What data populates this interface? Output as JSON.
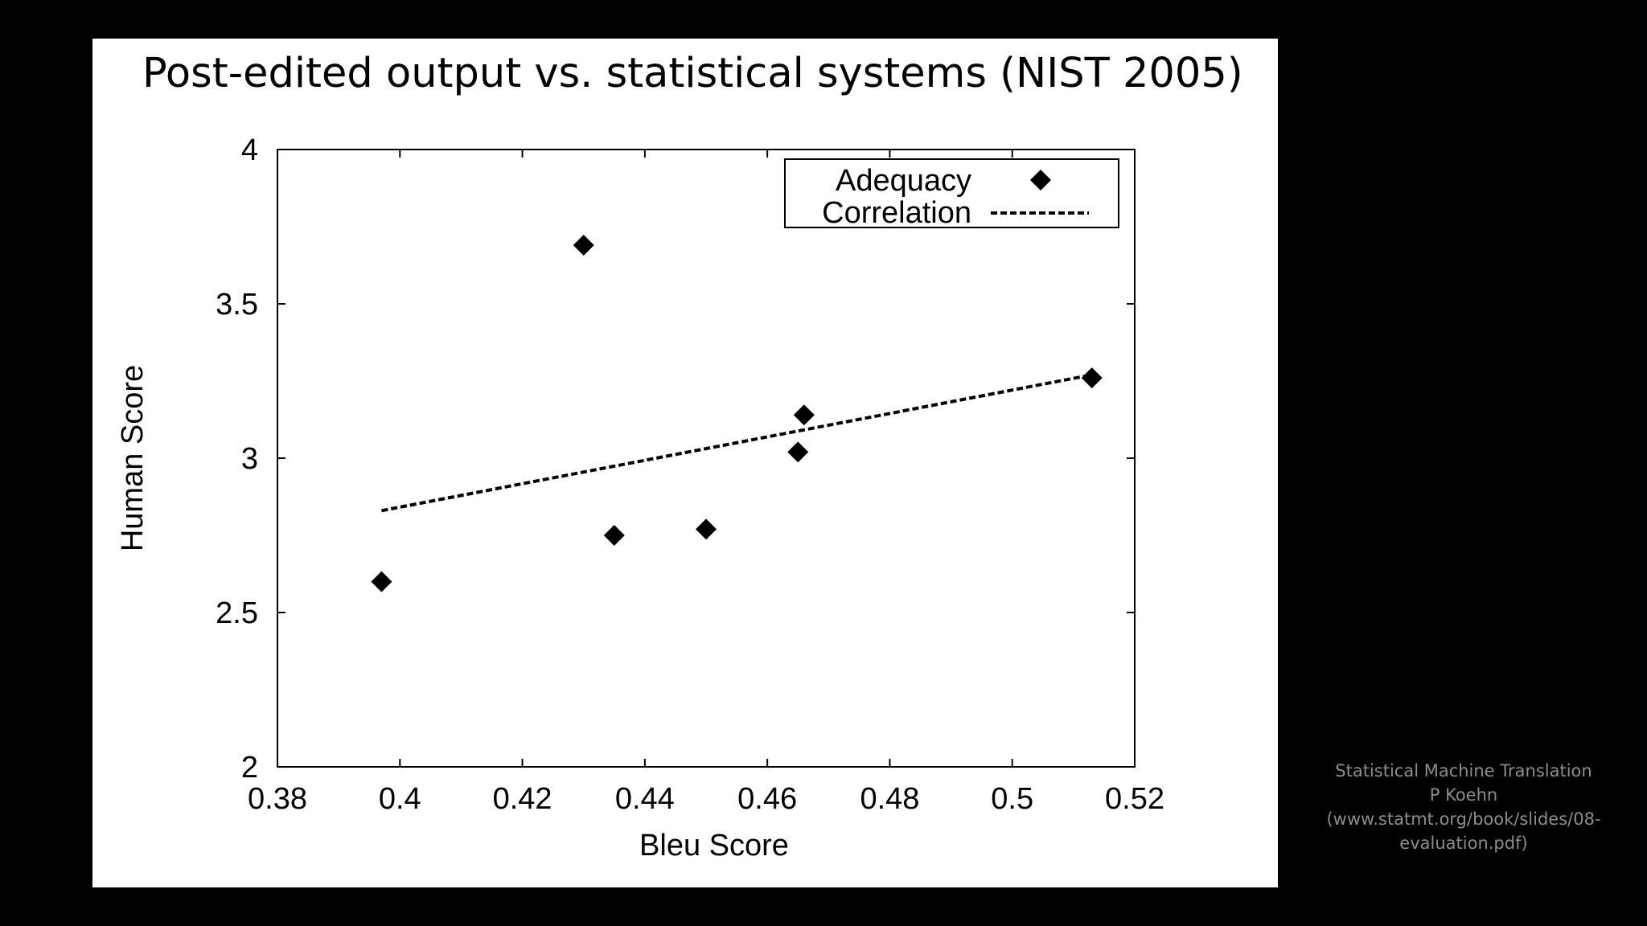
{
  "slide": {
    "title": "Post-edited output vs. statistical systems (NIST 2005)"
  },
  "chart_data": {
    "type": "scatter",
    "xlabel": "Bleu Score",
    "ylabel": "Human Score",
    "xlim": [
      0.38,
      0.52
    ],
    "ylim": [
      2,
      4
    ],
    "x_ticks": [
      "0.38",
      "0.4",
      "0.42",
      "0.44",
      "0.46",
      "0.48",
      "0.5",
      "0.52"
    ],
    "y_ticks": [
      "2",
      "2.5",
      "3",
      "3.5",
      "4"
    ],
    "grid": false,
    "legend_position": "top-right",
    "series": [
      {
        "name": "Adequacy",
        "marker": "diamond",
        "color": "#000000",
        "x": [
          0.397,
          0.43,
          0.435,
          0.45,
          0.465,
          0.466,
          0.513
        ],
        "y": [
          2.6,
          3.69,
          2.75,
          2.77,
          3.02,
          3.14,
          3.26
        ]
      },
      {
        "name": "Correlation",
        "style": "dashed-line",
        "color": "#000000",
        "x": [
          0.397,
          0.513
        ],
        "y": [
          2.83,
          3.27
        ]
      }
    ]
  },
  "source": {
    "line1": "Statistical Machine Translation",
    "line2": "P Koehn",
    "line3": "(www.statmt.org/book/slides/08-",
    "line4": "evaluation.pdf)"
  }
}
